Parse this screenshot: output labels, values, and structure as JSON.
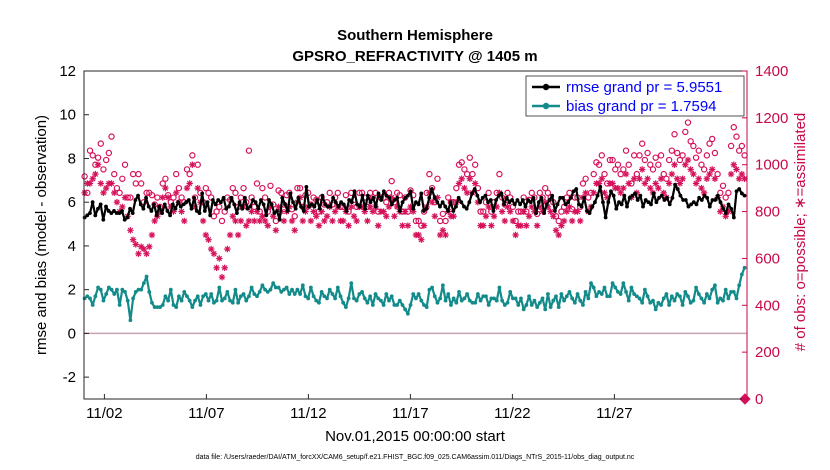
{
  "chart_data": {
    "type": "line",
    "title": "Southern Hemisphere",
    "subtitle": "GPSRO_REFRACTIVITY @ 1405 m",
    "xlabel": "Nov.01,2015 00:00:00 start",
    "ylabel": "rmse and bias (model - observation)",
    "y2label": "# of obs: o=possible; ∗=assimilated",
    "xlim": [
      0,
      32.5
    ],
    "ylim": [
      -3,
      12
    ],
    "y2lim": [
      0,
      1400
    ],
    "xticks": [
      {
        "x": 1,
        "label": "11/02"
      },
      {
        "x": 6,
        "label": "11/07"
      },
      {
        "x": 11,
        "label": "11/12"
      },
      {
        "x": 16,
        "label": "11/17"
      },
      {
        "x": 21,
        "label": "11/22"
      },
      {
        "x": 26,
        "label": "11/27"
      }
    ],
    "yticks": [
      -2,
      0,
      2,
      4,
      6,
      8,
      10,
      12
    ],
    "y2ticks": [
      0,
      200,
      400,
      600,
      800,
      1000,
      1200,
      1400
    ],
    "zero_line": 0,
    "footer": "data file: /Users/raeder/DAI/ATM_forcXX/CAM6_setup/f.e21.FHIST_BGC.f09_025.CAM6assim.011/Diags_NTrS_2015-11/obs_diag_output.nc",
    "series": [
      {
        "name": "rmse grand pr = 5.9551",
        "color": "#000000",
        "values": [
          5.3,
          5.4,
          5.5,
          6.0,
          5.4,
          5.7,
          5.9,
          5.2,
          5.8,
          5.6,
          5.5,
          5.6,
          5.5,
          5.5,
          5.6,
          5.2,
          5.3,
          5.7,
          5.5,
          6.1,
          6.3,
          5.9,
          5.7,
          6.2,
          5.8,
          5.6,
          5.9,
          5.4,
          5.8,
          5.5,
          5.9,
          5.6,
          5.4,
          5.9,
          5.7,
          6.0,
          5.8,
          5.9,
          6.0,
          6.1,
          5.7,
          6.2,
          5.6,
          5.5,
          6.4,
          5.6,
          6.0,
          5.4,
          6.1,
          5.9,
          6.1,
          6.0,
          6.2,
          5.7,
          5.8,
          6.2,
          5.9,
          5.5,
          6.0,
          5.7,
          6.2,
          5.7,
          5.8,
          6.1,
          6.0,
          5.7,
          6.1,
          5.9,
          5.4,
          6.1,
          5.9,
          5.5,
          5.6,
          5.2,
          6.2,
          5.9,
          5.6,
          6.4,
          6.0,
          5.7,
          6.2,
          5.8,
          5.6,
          6.7,
          5.8,
          5.9,
          5.8,
          6.1,
          5.7,
          6.3,
          5.9,
          5.8,
          5.8,
          6.2,
          6.0,
          5.8,
          6.0,
          5.9,
          5.6,
          6.1,
          6.0,
          6.5,
          5.9,
          5.8,
          6.3,
          5.7,
          6.3,
          6.0,
          6.2,
          5.8,
          6.4,
          6.1,
          6.5,
          6.3,
          6.2,
          5.9,
          6.1,
          6.2,
          5.6,
          6.0,
          6.2,
          6.3,
          6.5,
          5.7,
          6.0,
          5.9,
          6.4,
          5.6,
          5.7,
          6.2,
          6.6,
          6.2,
          6.0,
          5.8,
          6.0,
          5.8,
          5.6,
          6.0,
          5.6,
          5.8,
          6.2,
          6.0,
          5.8,
          5.7,
          6.0,
          6.4,
          6.6,
          6.3,
          6.0,
          6.2,
          6.3,
          6.0,
          6.1,
          5.6,
          6.1,
          6.3,
          6.4,
          5.9,
          6.2,
          6.0,
          6.1,
          5.9,
          6.1,
          5.9,
          6.1,
          5.8,
          6.1,
          6.0,
          6.2,
          5.5,
          6.0,
          6.2,
          5.5,
          5.9,
          6.1,
          6.3,
          5.6,
          5.9,
          6.2,
          6.2,
          5.9,
          6.0,
          6.2,
          6.5,
          6.6,
          5.9,
          5.8,
          6.2,
          5.6,
          5.5,
          5.8,
          6.0,
          6.3,
          6.7,
          6.0,
          5.3,
          6.0,
          6.5,
          6.3,
          5.7,
          6.0,
          5.9,
          6.3,
          5.8,
          6.2,
          6.3,
          6.4,
          6.1,
          6.3,
          5.8,
          6.1,
          6.0,
          5.9,
          6.4,
          6.0,
          6.2,
          6.3,
          6.1,
          6.2,
          5.9,
          6.2,
          6.8,
          6.6,
          6.3,
          6.1,
          6.1,
          5.8,
          5.9,
          6.0,
          5.9,
          6.2,
          6.1,
          6.3,
          6.2,
          5.8,
          6.1,
          6.1,
          6.3,
          6.0,
          5.7,
          5.5,
          5.9,
          5.7,
          5.3,
          6.5,
          6.6,
          6.4,
          6.3
        ]
      },
      {
        "name": "bias grand pr = 1.7594",
        "color": "#138b8b",
        "values": [
          1.6,
          1.7,
          1.6,
          1.3,
          1.7,
          2.1,
          2.0,
          1.5,
          1.8,
          2.1,
          2.0,
          1.8,
          2.0,
          1.3,
          2.0,
          1.9,
          1.5,
          0.6,
          1.6,
          1.9,
          2.0,
          2.0,
          2.3,
          2.6,
          1.9,
          1.4,
          1.2,
          1.2,
          1.2,
          1.3,
          1.7,
          1.5,
          2.0,
          1.3,
          1.2,
          1.7,
          1.5,
          1.9,
          1.7,
          1.5,
          1.2,
          1.5,
          1.7,
          1.3,
          1.7,
          1.8,
          1.5,
          1.8,
          1.4,
          1.5,
          2.1,
          1.5,
          1.6,
          1.9,
          1.5,
          1.4,
          2.0,
          1.4,
          1.7,
          1.8,
          1.5,
          1.7,
          2.1,
          1.8,
          1.7,
          1.9,
          2.2,
          2.0,
          1.9,
          2.0,
          2.3,
          2.1,
          2.1,
          1.9,
          2.0,
          2.1,
          1.8,
          2.0,
          1.8,
          2.0,
          1.8,
          2.2,
          1.7,
          1.6,
          2.1,
          1.7,
          1.5,
          1.4,
          1.9,
          1.7,
          1.6,
          2.0,
          1.8,
          1.6,
          2.1,
          1.7,
          1.4,
          1.2,
          1.6,
          2.3,
          1.6,
          1.5,
          1.8,
          1.9,
          1.6,
          1.4,
          1.7,
          1.3,
          1.8,
          1.6,
          1.5,
          1.3,
          1.8,
          1.5,
          1.7,
          1.3,
          1.3,
          1.5,
          1.3,
          1.1,
          0.9,
          1.3,
          1.8,
          1.6,
          1.8,
          1.5,
          1.3,
          1.2,
          2.0,
          2.1,
          1.7,
          1.4,
          1.6,
          2.2,
          1.5,
          1.8,
          1.3,
          1.6,
          1.4,
          1.9,
          1.5,
          1.6,
          1.8,
          1.5,
          1.4,
          1.4,
          1.8,
          1.5,
          1.7,
          1.7,
          1.3,
          1.6,
          1.6,
          1.5,
          2.1,
          1.5,
          1.3,
          1.4,
          1.9,
          1.6,
          1.6,
          1.3,
          1.6,
          1.1,
          1.3,
          1.7,
          1.3,
          1.5,
          1.2,
          1.4,
          1.6,
          1.1,
          1.8,
          1.2,
          1.5,
          1.7,
          1.2,
          1.8,
          1.5,
          1.7,
          1.9,
          1.6,
          1.4,
          1.8,
          1.5,
          1.3,
          1.9,
          1.6,
          2.3,
          2.1,
          1.7,
          1.9,
          1.8,
          2.1,
          1.7,
          1.7,
          2.3,
          2.1,
          1.9,
          1.8,
          2.3,
          1.9,
          1.5,
          2.1,
          1.8,
          1.7,
          1.6,
          1.4,
          2.0,
          1.7,
          1.4,
          1.5,
          1.1,
          1.4,
          1.3,
          1.6,
          1.8,
          1.3,
          1.7,
          1.5,
          1.8,
          1.7,
          1.3,
          1.9,
          1.7,
          1.4,
          1.5,
          2.1,
          1.8,
          1.6,
          1.4,
          1.8,
          1.6,
          2.0,
          2.2,
          1.4,
          1.6,
          1.5,
          2.0,
          1.6,
          1.9,
          1.9,
          1.6,
          2.2,
          2.7,
          3.0
        ]
      }
    ],
    "obs_possible": [
      950,
      880,
      1060,
      1040,
      1000,
      1030,
      1090,
      980,
      1020,
      1050,
      1120,
      960,
      900,
      880,
      940,
      1000,
      860,
      860,
      960,
      920,
      960,
      920,
      840,
      880,
      880,
      870,
      830,
      860,
      820,
      920,
      940,
      870,
      840,
      860,
      960,
      900,
      860,
      840,
      980,
      960,
      1040,
      860,
      1000,
      880,
      840,
      900,
      880,
      860,
      780,
      800,
      820,
      760,
      800,
      860,
      850,
      900,
      880,
      820,
      860,
      900,
      840,
      1060,
      860,
      820,
      920,
      800,
      900,
      860,
      800,
      910,
      830,
      760,
      890,
      880,
      830,
      870,
      880,
      810,
      780,
      900,
      900,
      820,
      870,
      880,
      830,
      860,
      850,
      800,
      860,
      830,
      840,
      880,
      830,
      860,
      880,
      820,
      820,
      870,
      800,
      880,
      850,
      820,
      880,
      880,
      860,
      820,
      880,
      860,
      880,
      800,
      860,
      860,
      840,
      880,
      930,
      840,
      880,
      870,
      800,
      860,
      800,
      890,
      870,
      760,
      760,
      740,
      800,
      880,
      960,
      900,
      840,
      940,
      760,
      790,
      760,
      860,
      840,
      840,
      900,
      1000,
      1010,
      980,
      960,
      1030,
      960,
      1000,
      900,
      800,
      800,
      840,
      880,
      800,
      840,
      880,
      960,
      860,
      830,
      880,
      860,
      820,
      760,
      800,
      800,
      860,
      800,
      850,
      880,
      860,
      790,
      880,
      860,
      900,
      880,
      860,
      840,
      780,
      760,
      800,
      820,
      860,
      880,
      810,
      860,
      860,
      820,
      920,
      940,
      860,
      880,
      960,
      1010,
      1000,
      1040,
      960,
      920,
      1020,
      1020,
      980,
      1000,
      960,
      980,
      1060,
      1000,
      920,
      1040,
      960,
      1040,
      1090,
      1020,
      1050,
      1000,
      980,
      1030,
      1000,
      1040,
      960,
      940,
      1020,
      1060,
      1130,
      1050,
      1020,
      1040,
      1140,
      1180,
      1100,
      1080,
      1030,
      1060,
      1000,
      980,
      1040,
      1090,
      1110,
      1050,
      960,
      880,
      910,
      860,
      880,
      1080,
      1160,
      1120,
      1060,
      1080,
      1040
    ],
    "obs_assimilated": [
      880,
      920,
      920,
      940,
      960,
      1000,
      920,
      880,
      900,
      920,
      920,
      880,
      840,
      800,
      820,
      860,
      780,
      720,
      680,
      660,
      620,
      650,
      640,
      620,
      650,
      700,
      760,
      780,
      800,
      860,
      900,
      860,
      820,
      800,
      880,
      840,
      800,
      760,
      900,
      920,
      1000,
      820,
      900,
      840,
      760,
      700,
      680,
      640,
      620,
      560,
      600,
      520,
      560,
      640,
      700,
      780,
      760,
      700,
      760,
      820,
      740,
      760,
      800,
      760,
      800,
      760,
      780,
      760,
      740,
      820,
      780,
      720,
      820,
      800,
      760,
      800,
      820,
      760,
      720,
      840,
      860,
      760,
      800,
      820,
      760,
      800,
      780,
      740,
      800,
      760,
      780,
      820,
      760,
      800,
      820,
      760,
      760,
      800,
      740,
      820,
      780,
      760,
      820,
      820,
      800,
      760,
      820,
      800,
      820,
      740,
      800,
      800,
      780,
      820,
      860,
      780,
      820,
      800,
      740,
      800,
      740,
      820,
      800,
      700,
      700,
      680,
      740,
      820,
      880,
      840,
      780,
      860,
      700,
      720,
      700,
      800,
      780,
      780,
      840,
      920,
      940,
      900,
      880,
      940,
      880,
      920,
      840,
      740,
      740,
      780,
      820,
      740,
      780,
      820,
      880,
      800,
      760,
      820,
      800,
      760,
      700,
      740,
      740,
      800,
      740,
      780,
      820,
      800,
      740,
      820,
      800,
      840,
      820,
      800,
      780,
      720,
      700,
      740,
      760,
      800,
      820,
      760,
      800,
      800,
      760,
      860,
      880,
      800,
      820,
      880,
      920,
      920,
      940,
      880,
      860,
      920,
      920,
      900,
      900,
      880,
      900,
      960,
      920,
      860,
      940,
      880,
      940,
      980,
      920,
      940,
      900,
      880,
      920,
      900,
      940,
      880,
      860,
      920,
      960,
      1000,
      940,
      920,
      940,
      1000,
      1020,
      980,
      960,
      920,
      940,
      900,
      880,
      940,
      960,
      980,
      940,
      860,
      800,
      820,
      780,
      800,
      960,
      1000,
      980,
      940,
      960,
      940
    ],
    "end_marker": {
      "x": 32.4,
      "y2": 0
    }
  }
}
